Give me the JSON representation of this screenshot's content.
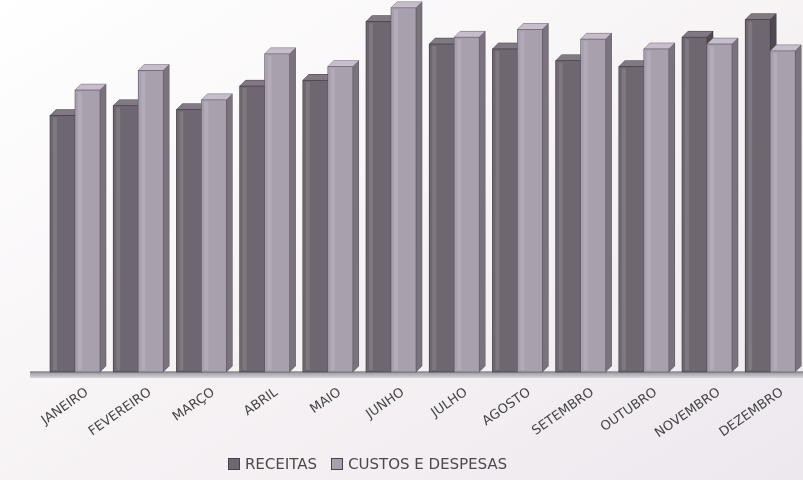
{
  "chart_data": {
    "type": "bar",
    "title": "",
    "xlabel": "",
    "ylabel": "",
    "categories": [
      "JANEIRO",
      "FEVEREIRO",
      "MARÇO",
      "ABRIL",
      "MAIO",
      "JUNHO",
      "JULHO",
      "AGOSTO",
      "SETEMBRO",
      "OUTUBRO",
      "NOVEMBRO",
      "DEZEMBRO"
    ],
    "series": [
      {
        "name": "RECEITAS",
        "values": [
          262,
          272,
          268,
          292,
          298,
          358,
          335,
          330,
          318,
          312,
          342,
          360
        ]
      },
      {
        "name": "CUSTOS E DESPESAS",
        "values": [
          288,
          308,
          278,
          325,
          312,
          372,
          342,
          350,
          340,
          330,
          335,
          328
        ]
      }
    ],
    "ylim": [
      0,
      380
    ],
    "grid": false,
    "legend_position": "bottom",
    "colors": {
      "RECEITAS": "#6e6670",
      "CUSTOS E DESPESAS": "#a9a0ae",
      "floor": "#8a8890"
    }
  }
}
